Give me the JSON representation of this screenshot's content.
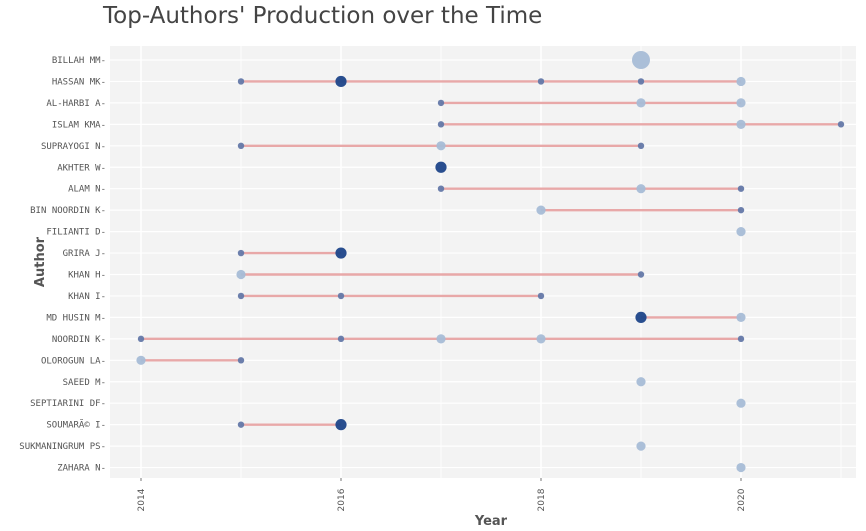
{
  "chart_data": {
    "type": "scatter",
    "title": "Top-Authors' Production over the Time",
    "xlabel": "Year",
    "ylabel": "Author",
    "xlim": [
      2013.95,
      2021.05
    ],
    "x_ticks": [
      "2014",
      "2016",
      "2018",
      "2020"
    ],
    "grid": true,
    "legend": "none",
    "colors": {
      "panel": "#f3f3f3",
      "grid": "#ffffff",
      "segment": "#e8a8a8",
      "light": "#a7bcd6",
      "mid": "#6478a8",
      "dark": "#1d4589"
    },
    "authors": [
      {
        "name": "BILLAH MM",
        "span": [
          2019,
          2019
        ],
        "points": [
          {
            "year": 2019,
            "n": 4
          }
        ]
      },
      {
        "name": "HASSAN MK",
        "span": [
          2015,
          2020
        ],
        "points": [
          {
            "year": 2015,
            "n": 1
          },
          {
            "year": 2016,
            "n": 3
          },
          {
            "year": 2018,
            "n": 1
          },
          {
            "year": 2019,
            "n": 1
          },
          {
            "year": 2020,
            "n": 2
          }
        ]
      },
      {
        "name": "AL-HARBI A",
        "span": [
          2017,
          2020
        ],
        "points": [
          {
            "year": 2017,
            "n": 1
          },
          {
            "year": 2019,
            "n": 2
          },
          {
            "year": 2020,
            "n": 2
          }
        ]
      },
      {
        "name": "ISLAM KMA",
        "span": [
          2017,
          2021
        ],
        "points": [
          {
            "year": 2017,
            "n": 1
          },
          {
            "year": 2020,
            "n": 2
          },
          {
            "year": 2021,
            "n": 1
          }
        ]
      },
      {
        "name": "SUPRAYOGI N",
        "span": [
          2015,
          2019
        ],
        "points": [
          {
            "year": 2015,
            "n": 1
          },
          {
            "year": 2017,
            "n": 2
          },
          {
            "year": 2019,
            "n": 1
          }
        ]
      },
      {
        "name": "AKHTER W",
        "span": [
          2017,
          2017
        ],
        "points": [
          {
            "year": 2017,
            "n": 3
          }
        ]
      },
      {
        "name": "ALAM N",
        "span": [
          2017,
          2020
        ],
        "points": [
          {
            "year": 2017,
            "n": 1
          },
          {
            "year": 2019,
            "n": 2
          },
          {
            "year": 2020,
            "n": 1
          }
        ]
      },
      {
        "name": "BIN NOORDIN K",
        "span": [
          2018,
          2020
        ],
        "points": [
          {
            "year": 2018,
            "n": 2
          },
          {
            "year": 2020,
            "n": 1
          }
        ]
      },
      {
        "name": "FILIANTI D",
        "span": [
          2020,
          2020
        ],
        "points": [
          {
            "year": 2020,
            "n": 2
          }
        ]
      },
      {
        "name": "GRIRA J",
        "span": [
          2015,
          2016
        ],
        "points": [
          {
            "year": 2015,
            "n": 1
          },
          {
            "year": 2016,
            "n": 3
          }
        ]
      },
      {
        "name": "KHAN H",
        "span": [
          2015,
          2019
        ],
        "points": [
          {
            "year": 2015,
            "n": 2
          },
          {
            "year": 2019,
            "n": 1
          }
        ]
      },
      {
        "name": "KHAN I",
        "span": [
          2015,
          2018
        ],
        "points": [
          {
            "year": 2015,
            "n": 1
          },
          {
            "year": 2016,
            "n": 1
          },
          {
            "year": 2018,
            "n": 1
          }
        ]
      },
      {
        "name": "MD HUSIN M",
        "span": [
          2019,
          2020
        ],
        "points": [
          {
            "year": 2019,
            "n": 3
          },
          {
            "year": 2020,
            "n": 2
          }
        ]
      },
      {
        "name": "NOORDIN K",
        "span": [
          2014,
          2020
        ],
        "points": [
          {
            "year": 2014,
            "n": 1
          },
          {
            "year": 2016,
            "n": 1
          },
          {
            "year": 2017,
            "n": 2
          },
          {
            "year": 2018,
            "n": 2
          },
          {
            "year": 2020,
            "n": 1
          }
        ]
      },
      {
        "name": "OLOROGUN LA",
        "span": [
          2014,
          2015
        ],
        "points": [
          {
            "year": 2014,
            "n": 2
          },
          {
            "year": 2015,
            "n": 1
          }
        ]
      },
      {
        "name": "SAEED M",
        "span": [
          2019,
          2019
        ],
        "points": [
          {
            "year": 2019,
            "n": 2
          }
        ]
      },
      {
        "name": "SEPTIARINI DF",
        "span": [
          2020,
          2020
        ],
        "points": [
          {
            "year": 2020,
            "n": 2
          }
        ]
      },
      {
        "name": "SOUMARÃ© I",
        "span": [
          2015,
          2016
        ],
        "points": [
          {
            "year": 2015,
            "n": 1
          },
          {
            "year": 2016,
            "n": 3
          }
        ]
      },
      {
        "name": "SUKMANINGRUM PS",
        "span": [
          2019,
          2019
        ],
        "points": [
          {
            "year": 2019,
            "n": 2
          }
        ]
      },
      {
        "name": "ZAHARA N",
        "span": [
          2020,
          2020
        ],
        "points": [
          {
            "year": 2020,
            "n": 2
          }
        ]
      }
    ]
  }
}
